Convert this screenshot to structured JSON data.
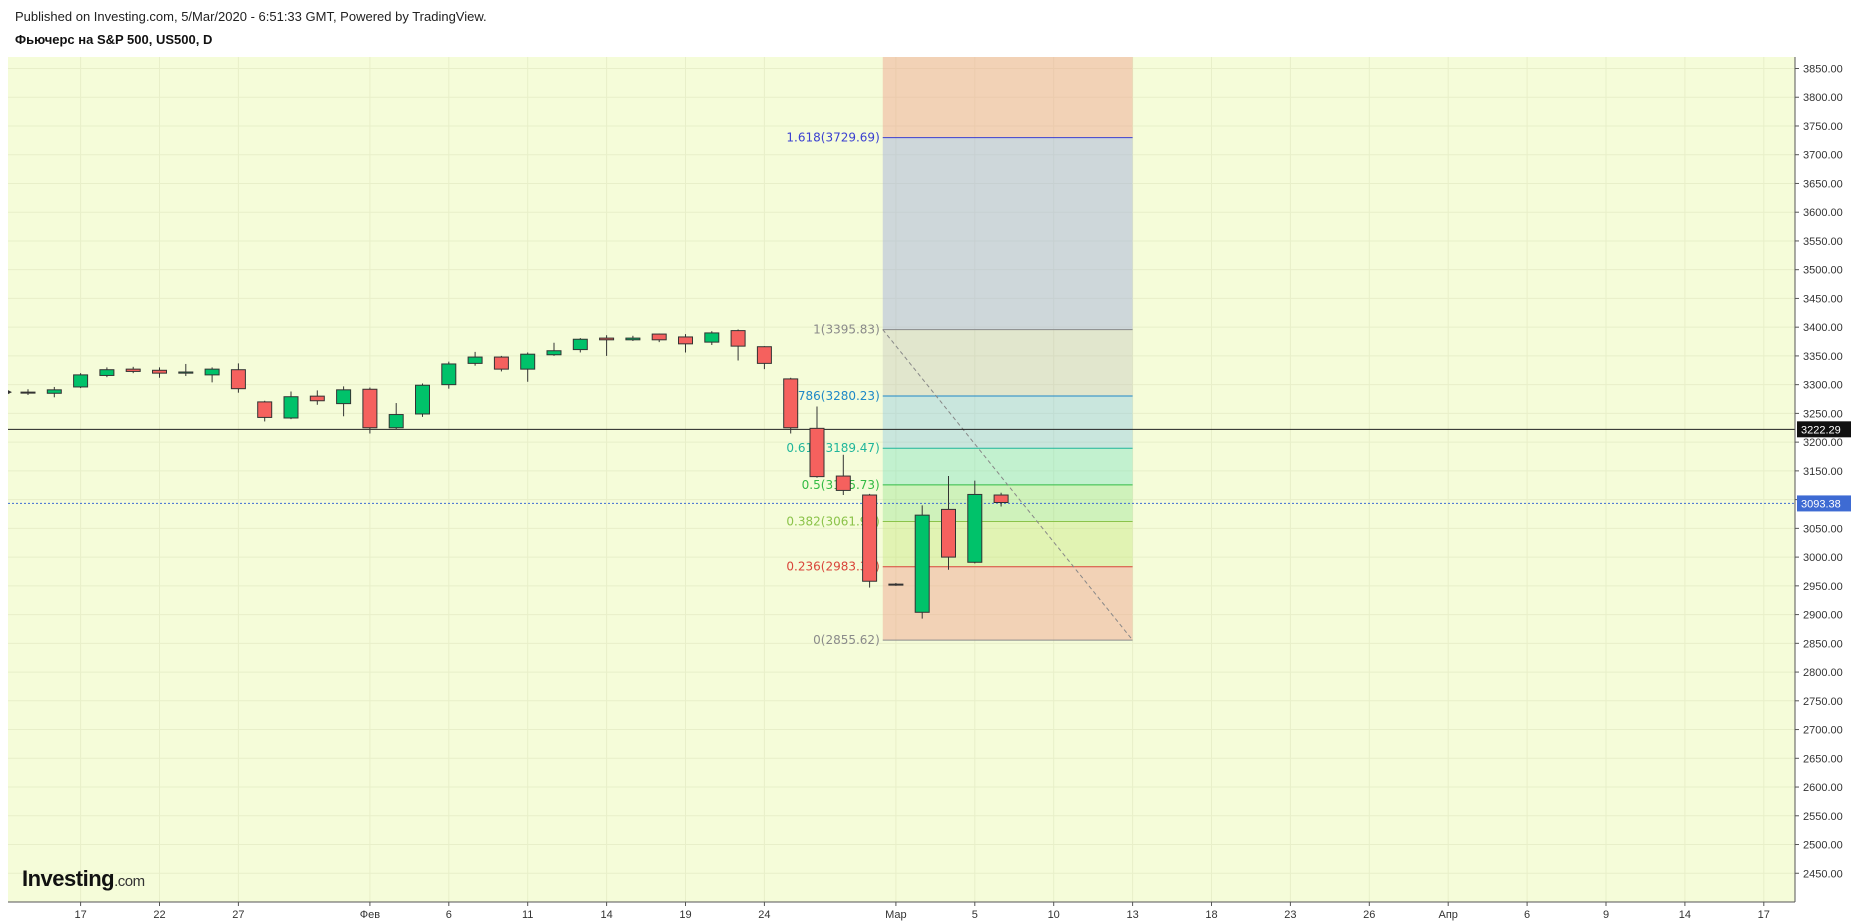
{
  "header": {
    "published": "Published on Investing.com, 5/Mar/2020 - 6:51:33 GMT, Powered by TradingView.",
    "symbol": "Фьючерс на S&P 500, US500, D"
  },
  "logo": {
    "main": "Investing",
    "suffix": ".com"
  },
  "colors": {
    "background": "#f5fcd9",
    "up": "#00c26a",
    "down": "#f5615e",
    "axis_text": "#333333",
    "last_price_badge": "#3e6bd3",
    "crosshair_badge": "#111111"
  },
  "chart_data": {
    "type": "candlestick",
    "ylim": [
      2400,
      3870
    ],
    "y_ticks": [
      2450,
      2500,
      2550,
      2600,
      2650,
      2700,
      2750,
      2800,
      2850,
      2900,
      2950,
      3000,
      3050,
      3100,
      3150,
      3200,
      3250,
      3300,
      3350,
      3400,
      3450,
      3500,
      3550,
      3600,
      3650,
      3700,
      3750,
      3800,
      3850
    ],
    "y_tick_labels": [
      "2450.00",
      "2500.00",
      "2550.00",
      "2600.00",
      "2650.00",
      "2700.00",
      "2750.00",
      "2800.00",
      "2850.00",
      "2900.00",
      "2950.00",
      "3000.00",
      "3050.00",
      "3100.00",
      "3150.00",
      "3200.00",
      "3250.00",
      "3300.00",
      "3350.00",
      "3400.00",
      "3450.00",
      "3500.00",
      "3550.00",
      "3600.00",
      "3650.00",
      "3700.00",
      "3750.00",
      "3800.00",
      "3850.00"
    ],
    "x_ticks": [
      {
        "bar": 2,
        "label": "17"
      },
      {
        "bar": 5,
        "label": "22"
      },
      {
        "bar": 8,
        "label": "27"
      },
      {
        "bar": 13,
        "label": "Фев"
      },
      {
        "bar": 16,
        "label": "6"
      },
      {
        "bar": 19,
        "label": "11"
      },
      {
        "bar": 22,
        "label": "14"
      },
      {
        "bar": 25,
        "label": "19"
      },
      {
        "bar": 28,
        "label": "24"
      },
      {
        "bar": 33,
        "label": "Мар"
      },
      {
        "bar": 36,
        "label": "5"
      },
      {
        "bar": 39,
        "label": "10"
      },
      {
        "bar": 42,
        "label": "13"
      },
      {
        "bar": 45,
        "label": "18"
      },
      {
        "bar": 48,
        "label": "23"
      },
      {
        "bar": 51,
        "label": "26"
      },
      {
        "bar": 54,
        "label": "Апр"
      },
      {
        "bar": 57,
        "label": "6"
      },
      {
        "bar": 60,
        "label": "9"
      },
      {
        "bar": 63,
        "label": "14"
      },
      {
        "bar": 66,
        "label": "17"
      }
    ],
    "bars": [
      {
        "i": 0,
        "o": 3287,
        "h": 3292,
        "l": 3282,
        "c": 3287
      },
      {
        "i": 1,
        "o": 3285,
        "h": 3296,
        "l": 3278,
        "c": 3291
      },
      {
        "i": 2,
        "o": 3296,
        "h": 3320,
        "l": 3294,
        "c": 3317
      },
      {
        "i": 3,
        "o": 3316,
        "h": 3330,
        "l": 3313,
        "c": 3326
      },
      {
        "i": 4,
        "o": 3327,
        "h": 3331,
        "l": 3320,
        "c": 3323
      },
      {
        "i": 5,
        "o": 3325,
        "h": 3330,
        "l": 3312,
        "c": 3320
      },
      {
        "i": 6,
        "o": 3320,
        "h": 3336,
        "l": 3315,
        "c": 3322
      },
      {
        "i": 7,
        "o": 3317,
        "h": 3330,
        "l": 3304,
        "c": 3327
      },
      {
        "i": 8,
        "o": 3326,
        "h": 3337,
        "l": 3286,
        "c": 3293
      },
      {
        "i": 9,
        "o": 3270,
        "h": 3272,
        "l": 3236,
        "c": 3243
      },
      {
        "i": 10,
        "o": 3242,
        "h": 3288,
        "l": 3240,
        "c": 3279
      },
      {
        "i": 11,
        "o": 3280,
        "h": 3290,
        "l": 3265,
        "c": 3272
      },
      {
        "i": 12,
        "o": 3267,
        "h": 3297,
        "l": 3245,
        "c": 3291
      },
      {
        "i": 13,
        "o": 3292,
        "h": 3295,
        "l": 3215,
        "c": 3225
      },
      {
        "i": 14,
        "o": 3225,
        "h": 3268,
        "l": 3222,
        "c": 3248
      },
      {
        "i": 15,
        "o": 3249,
        "h": 3302,
        "l": 3244,
        "c": 3299
      },
      {
        "i": 16,
        "o": 3300,
        "h": 3340,
        "l": 3293,
        "c": 3336
      },
      {
        "i": 17,
        "o": 3337,
        "h": 3357,
        "l": 3333,
        "c": 3348
      },
      {
        "i": 18,
        "o": 3348,
        "h": 3350,
        "l": 3323,
        "c": 3327
      },
      {
        "i": 19,
        "o": 3327,
        "h": 3356,
        "l": 3305,
        "c": 3353
      },
      {
        "i": 20,
        "o": 3352,
        "h": 3373,
        "l": 3350,
        "c": 3359
      },
      {
        "i": 21,
        "o": 3361,
        "h": 3381,
        "l": 3356,
        "c": 3379
      },
      {
        "i": 22,
        "o": 3381,
        "h": 3386,
        "l": 3350,
        "c": 3378
      },
      {
        "i": 23,
        "o": 3378,
        "h": 3385,
        "l": 3376,
        "c": 3381
      },
      {
        "i": 24,
        "o": 3388,
        "h": 3389,
        "l": 3374,
        "c": 3378
      },
      {
        "i": 25,
        "o": 3383,
        "h": 3388,
        "l": 3356,
        "c": 3371
      },
      {
        "i": 26,
        "o": 3374,
        "h": 3393,
        "l": 3369,
        "c": 3390
      },
      {
        "i": 27,
        "o": 3394,
        "h": 3396,
        "l": 3342,
        "c": 3367
      },
      {
        "i": 28,
        "o": 3366,
        "h": 3367,
        "l": 3327,
        "c": 3337
      },
      {
        "i": 29,
        "o": 3310,
        "h": 3312,
        "l": 3215,
        "c": 3225
      },
      {
        "i": 30,
        "o": 3224,
        "h": 3262,
        "l": 3138,
        "c": 3140
      },
      {
        "i": 31,
        "o": 3141,
        "h": 3178,
        "l": 3108,
        "c": 3116
      },
      {
        "i": 32,
        "o": 3108,
        "h": 3110,
        "l": 2947,
        "c": 2958
      },
      {
        "i": 33,
        "o": 2953,
        "h": 2955,
        "l": 2950,
        "c": 2953
      },
      {
        "i": 34,
        "o": 2904,
        "h": 3090,
        "l": 2893,
        "c": 3073
      },
      {
        "i": 35,
        "o": 3083,
        "h": 3141,
        "l": 2978,
        "c": 3000
      },
      {
        "i": 36,
        "o": 2991,
        "h": 3133,
        "l": 2989,
        "c": 3109
      },
      {
        "i": 37,
        "o": 3108,
        "h": 3112,
        "l": 3088,
        "c": 3095
      }
    ],
    "fib": {
      "start_bar": 32.5,
      "end_bar": 42,
      "levels": [
        {
          "label": "1.618(3729.69)",
          "value": 3729.69,
          "color": "#3a3fd1"
        },
        {
          "label": "1(3395.83)",
          "value": 3395.83,
          "color": "#8a8a8a"
        },
        {
          "label": "0.786(3280.23)",
          "value": 3280.23,
          "color": "#1e88c7"
        },
        {
          "label": "0.618(3189.47)",
          "value": 3189.47,
          "color": "#1fb59a"
        },
        {
          "label": "0.5(3125.73)",
          "value": 3125.73,
          "color": "#33bb44"
        },
        {
          "label": "0.382(3061.98)",
          "value": 3061.98,
          "color": "#8bc34a"
        },
        {
          "label": "0.236(2983.31)",
          "value": 2983.31,
          "color": "#d9453a"
        },
        {
          "label": "0(2855.62)",
          "value": 2855.62,
          "color": "#8a8a8a"
        }
      ],
      "top_fill_to": 3870
    },
    "crosshair_value": "3222.29",
    "crosshair_y": 3222.29,
    "last_price": "3093.38",
    "last_price_y": 3093.38
  }
}
